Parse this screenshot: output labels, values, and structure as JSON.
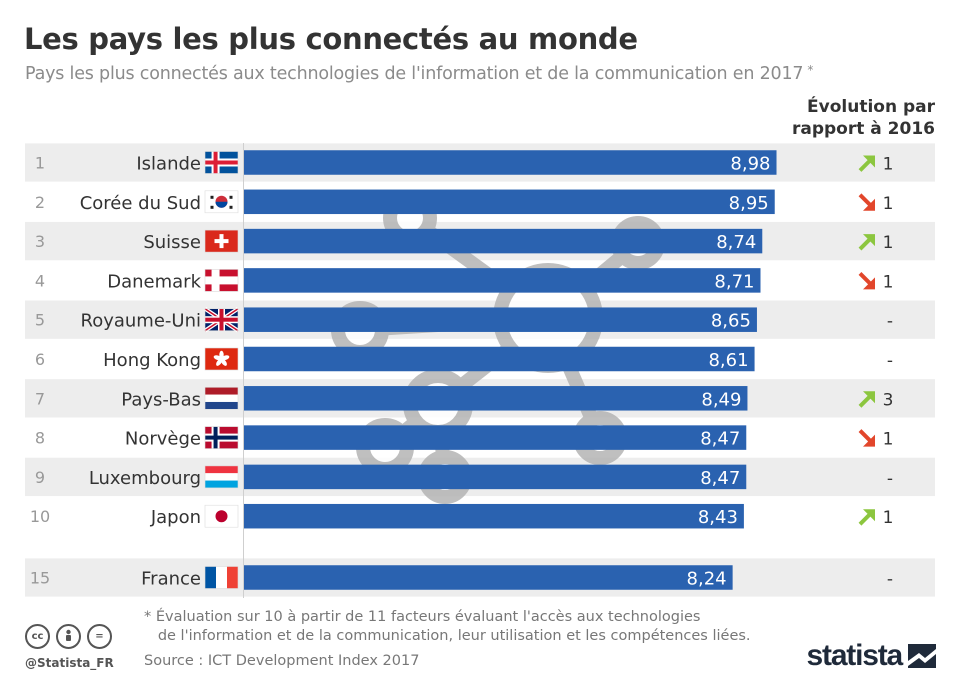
{
  "header": {
    "title": "Les pays les plus connectés au monde",
    "subtitle": "Pays les plus connectés aux technologies de l'information et de la communication en 2017",
    "subtitle_star": "*",
    "evolution_header_line1": "Évolution par",
    "evolution_header_line2": "rapport à 2016"
  },
  "chart_data": {
    "type": "bar",
    "orientation": "horizontal",
    "xlim": [
      0,
      10
    ],
    "grid": false,
    "rows": [
      {
        "rank": "1",
        "country": "Islande",
        "value": 8.98,
        "label": "8,98",
        "flag": "iceland",
        "trend": "up",
        "change": "1"
      },
      {
        "rank": "2",
        "country": "Corée du Sud",
        "value": 8.95,
        "label": "8,95",
        "flag": "south-korea",
        "trend": "down",
        "change": "1"
      },
      {
        "rank": "3",
        "country": "Suisse",
        "value": 8.74,
        "label": "8,74",
        "flag": "switzerland",
        "trend": "up",
        "change": "1"
      },
      {
        "rank": "4",
        "country": "Danemark",
        "value": 8.71,
        "label": "8,71",
        "flag": "denmark",
        "trend": "down",
        "change": "1"
      },
      {
        "rank": "5",
        "country": "Royaume-Uni",
        "value": 8.65,
        "label": "8,65",
        "flag": "united-kingdom",
        "trend": "none",
        "change": "-"
      },
      {
        "rank": "6",
        "country": "Hong Kong",
        "value": 8.61,
        "label": "8,61",
        "flag": "hong-kong",
        "trend": "none",
        "change": "-"
      },
      {
        "rank": "7",
        "country": "Pays-Bas",
        "value": 8.49,
        "label": "8,49",
        "flag": "netherlands",
        "trend": "up",
        "change": "3"
      },
      {
        "rank": "8",
        "country": "Norvège",
        "value": 8.47,
        "label": "8,47",
        "flag": "norway",
        "trend": "down",
        "change": "1"
      },
      {
        "rank": "9",
        "country": "Luxembourg",
        "value": 8.47,
        "label": "8,47",
        "flag": "luxembourg",
        "trend": "none",
        "change": "-"
      },
      {
        "rank": "10",
        "country": "Japon",
        "value": 8.43,
        "label": "8,43",
        "flag": "japan",
        "trend": "up",
        "change": "1"
      },
      {
        "rank": "15",
        "country": "France",
        "value": 8.24,
        "label": "8,24",
        "flag": "france",
        "trend": "none",
        "change": "-"
      }
    ]
  },
  "colors": {
    "bar": "#2a62b0",
    "stripe": "#ededed",
    "up_arrow": "#8cc63f",
    "down_arrow": "#e2462b",
    "watermark": "#b4b4b4"
  },
  "footer": {
    "footnote": "* Évaluation sur 10 à partir de 11 facteurs évaluant l'accès aux technologies\n   de l'information et de la communication, leur utilisation et les compétences liées.",
    "source": "Source : ICT Development Index 2017",
    "handle": "@Statista_FR",
    "logo": "statista",
    "license_icons": [
      "cc",
      "by",
      "="
    ]
  }
}
